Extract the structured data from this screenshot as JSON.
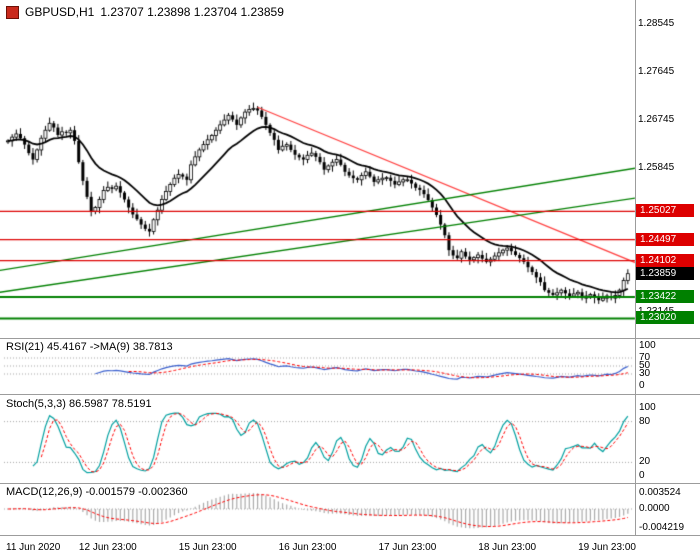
{
  "window": {
    "symbol": "GBPUSD,H1",
    "ohlc": "1.23707 1.23898 1.23704 1.23859"
  },
  "price_axis": {
    "grid_labels": [
      1.28545,
      1.27645,
      1.26745,
      1.25845,
      1.23145
    ],
    "levels": [
      {
        "value": 1.25027,
        "color": "#dd0000",
        "type": "resistance"
      },
      {
        "value": 1.24497,
        "color": "#dd0000",
        "type": "resistance"
      },
      {
        "value": 1.24102,
        "color": "#dd0000",
        "type": "resistance"
      },
      {
        "value": 1.23859,
        "color": "#000000",
        "type": "current"
      },
      {
        "value": 1.23422,
        "color": "#008000",
        "type": "support"
      },
      {
        "value": 1.2302,
        "color": "#008000",
        "type": "support"
      }
    ]
  },
  "time_axis": {
    "labels": [
      {
        "text": "11 Jun 2020",
        "bar": 0
      },
      {
        "text": "12 Jun 23:00",
        "bar": 24
      },
      {
        "text": "15 Jun 23:00",
        "bar": 48
      },
      {
        "text": "16 Jun 23:00",
        "bar": 72
      },
      {
        "text": "17 Jun 23:00",
        "bar": 96
      },
      {
        "text": "18 Jun 23:00",
        "bar": 120
      },
      {
        "text": "19 Jun 23:00",
        "bar": 144
      }
    ]
  },
  "chart_data": [
    {
      "type": "candlestick",
      "title": "GBPUSD,H1",
      "timeframe": "H1",
      "last_price": 1.23859,
      "ylim": [
        1.2269,
        1.2888
      ],
      "bars_total": 150,
      "closes": [
        1.2635,
        1.2642,
        1.2648,
        1.264,
        1.2628,
        1.2612,
        1.26,
        1.2618,
        1.264,
        1.2655,
        1.2668,
        1.266,
        1.2646,
        1.2652,
        1.265,
        1.2655,
        1.2635,
        1.2595,
        1.256,
        1.253,
        1.2503,
        1.251,
        1.2525,
        1.2542,
        1.2548,
        1.2545,
        1.255,
        1.2538,
        1.2525,
        1.251,
        1.2497,
        1.2488,
        1.2478,
        1.247,
        1.2465,
        1.2487,
        1.2505,
        1.2525,
        1.254,
        1.2553,
        1.2565,
        1.2572,
        1.2568,
        1.2562,
        1.259,
        1.2605,
        1.2618,
        1.2628,
        1.2637,
        1.2645,
        1.2655,
        1.2665,
        1.2674,
        1.2683,
        1.2675,
        1.2665,
        1.2678,
        1.2689,
        1.2694,
        1.2696,
        1.2692,
        1.268,
        1.2665,
        1.265,
        1.2637,
        1.2618,
        1.2625,
        1.2628,
        1.2618,
        1.2609,
        1.2604,
        1.26,
        1.2608,
        1.2612,
        1.2605,
        1.2595,
        1.2581,
        1.2588,
        1.2595,
        1.26,
        1.259,
        1.2577,
        1.257,
        1.2565,
        1.2562,
        1.257,
        1.2577,
        1.2568,
        1.2558,
        1.2562,
        1.2565,
        1.2566,
        1.256,
        1.2553,
        1.2558,
        1.2562,
        1.2562,
        1.2555,
        1.2547,
        1.2543,
        1.2535,
        1.2524,
        1.251,
        1.2496,
        1.2478,
        1.2458,
        1.243,
        1.242,
        1.2415,
        1.2427,
        1.2418,
        1.2412,
        1.2416,
        1.2421,
        1.2414,
        1.2408,
        1.2413,
        1.2419,
        1.2425,
        1.243,
        1.2434,
        1.2428,
        1.2421,
        1.2415,
        1.2408,
        1.2398,
        1.2389,
        1.2379,
        1.237,
        1.2355,
        1.235,
        1.2346,
        1.235,
        1.2355,
        1.2349,
        1.2344,
        1.2348,
        1.2351,
        1.234,
        1.2344,
        1.2347,
        1.2341,
        1.2336,
        1.234,
        1.2344,
        1.234,
        1.2345,
        1.2355,
        1.2373,
        1.23859
      ],
      "ma": {
        "period": 16,
        "color": "#000000"
      },
      "trendlines": [
        {
          "color": "#ff4040",
          "width": 1.2,
          "from_bar": 60,
          "from_price": 1.2698,
          "to_bar": 151,
          "to_price": 1.2406
        },
        {
          "color": "#008000",
          "width": 1.4,
          "from_bar": -2,
          "from_price": 1.2392,
          "to_bar": 151,
          "to_price": 1.2584
        },
        {
          "color": "#008000",
          "width": 1.4,
          "from_bar": -2,
          "from_price": 1.2351,
          "to_bar": 151,
          "to_price": 1.2528
        }
      ],
      "candle_up_color": "#ffffff",
      "candle_down_color": "#000000"
    },
    {
      "type": "line",
      "name": "RSI",
      "label": "RSI(21) 45.4167 ->MA(9) 38.7813",
      "period": 21,
      "ma_period": 9,
      "last": 45.4167,
      "ma_last": 38.7813,
      "dotted_levels": [
        70,
        50,
        30
      ],
      "axis_labels": [
        100,
        70,
        50,
        30,
        0
      ],
      "colors": {
        "line": "#3a5fcd",
        "ma": "#ff0000"
      }
    },
    {
      "type": "line",
      "name": "Stochastic",
      "label": "Stoch(5,3,3) 86.5987 78.5191",
      "k_period": 5,
      "d_period": 3,
      "slowing": 3,
      "last_k": 86.5987,
      "last_d": 78.5191,
      "dotted_levels": [
        80,
        20
      ],
      "axis_labels": [
        100,
        80,
        20,
        0
      ],
      "colors": {
        "k": "#00a0a0",
        "d": "#ff0000"
      }
    },
    {
      "type": "bar",
      "name": "MACD",
      "label": "MACD(12,26,9) -0.001579 -0.002360",
      "fast": 12,
      "slow": 26,
      "signal": 9,
      "last_main": -0.001579,
      "last_signal": -0.00236,
      "axis": [
        {
          "text": "0.003524",
          "value": 0.003524
        },
        {
          "text": "0.0000",
          "value": 0
        },
        {
          "text": "-0.004219",
          "value": -0.004219
        }
      ],
      "colors": {
        "hist": "#aaaaaa",
        "signal": "#ff0000"
      }
    }
  ],
  "colors": {
    "background": "#ffffff",
    "axis_text": "#000000",
    "divider": "#9c9c9c",
    "dotted_level": "#a0a0a0"
  }
}
